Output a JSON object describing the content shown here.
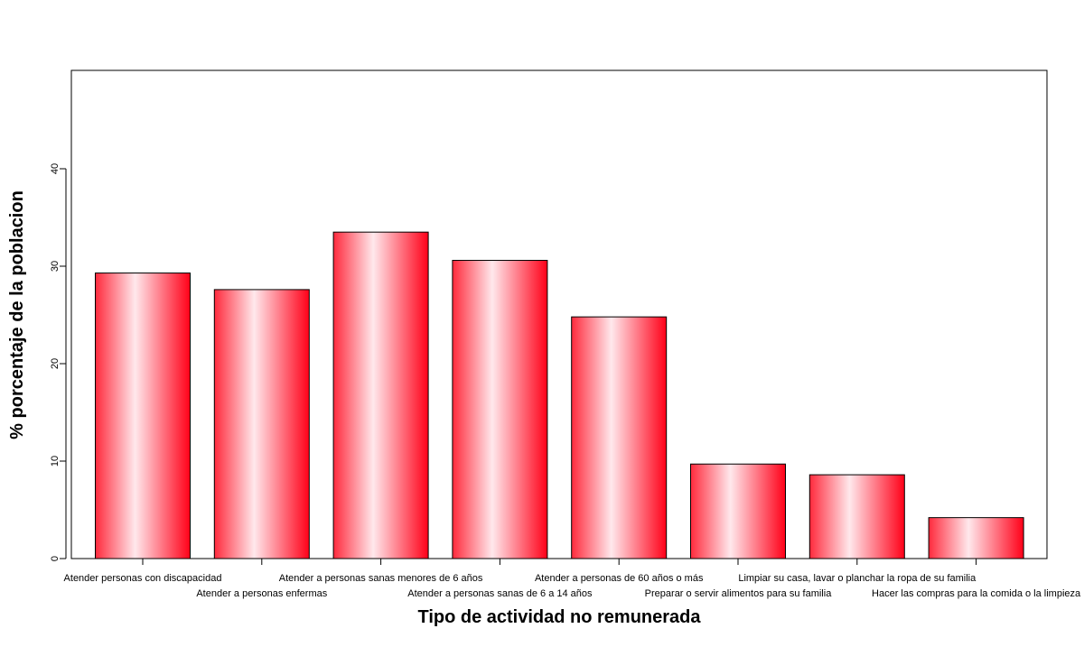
{
  "chart_data": {
    "type": "bar",
    "title": "",
    "xlabel": "Tipo de actividad no remunerada",
    "ylabel": "% porcentaje de la poblacion",
    "ylim": [
      0,
      50
    ],
    "yticks": [
      0,
      10,
      20,
      30,
      40
    ],
    "grid": false,
    "categories": [
      "Atender personas con discapacidad",
      "Atender a personas enfermas",
      "Atender a personas sanas menores de 6 años",
      "Atender a personas sanas de 6 a 14 años",
      "Atender a personas de 60 años o más",
      "Preparar o servir alimentos para su familia",
      "Limpiar su casa, lavar o planchar la ropa de su familia",
      "Hacer las compras para la comida o la limpieza"
    ],
    "values": [
      29.3,
      27.6,
      33.5,
      30.6,
      24.8,
      9.7,
      8.6,
      4.2
    ],
    "bar_color": "#ff0018",
    "bar_highlight": "#ffe8ec"
  }
}
